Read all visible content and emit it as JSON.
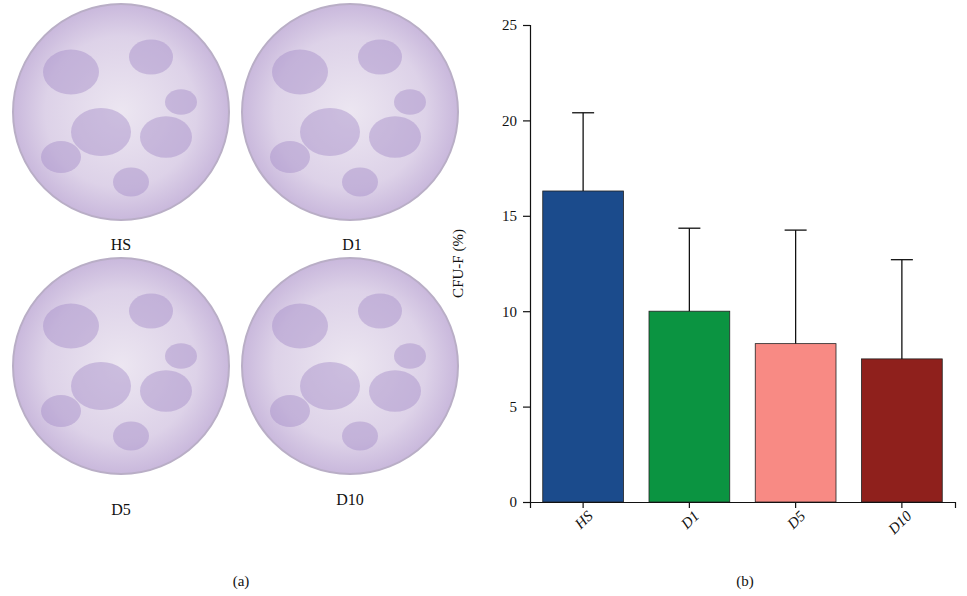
{
  "chart_data": {
    "type": "bar",
    "panel_label": "(b)",
    "y_label": "CFU-F (%)",
    "categories": [
      "HS",
      "D1",
      "D5",
      "D10"
    ],
    "values": [
      16.3,
      10.0,
      8.3,
      7.5
    ],
    "errors": [
      4.1,
      4.35,
      5.95,
      5.2
    ],
    "colors": [
      "#1b4b8c",
      "#0b9441",
      "#f88a84",
      "#8f201c"
    ],
    "ylim": [
      0,
      25
    ],
    "yticks": [
      0,
      5,
      10,
      15,
      20,
      25
    ],
    "grid": false
  },
  "image_panel": {
    "panel_label": "(a)",
    "dish_labels": [
      "HS",
      "D1",
      "D5",
      "D10"
    ]
  }
}
